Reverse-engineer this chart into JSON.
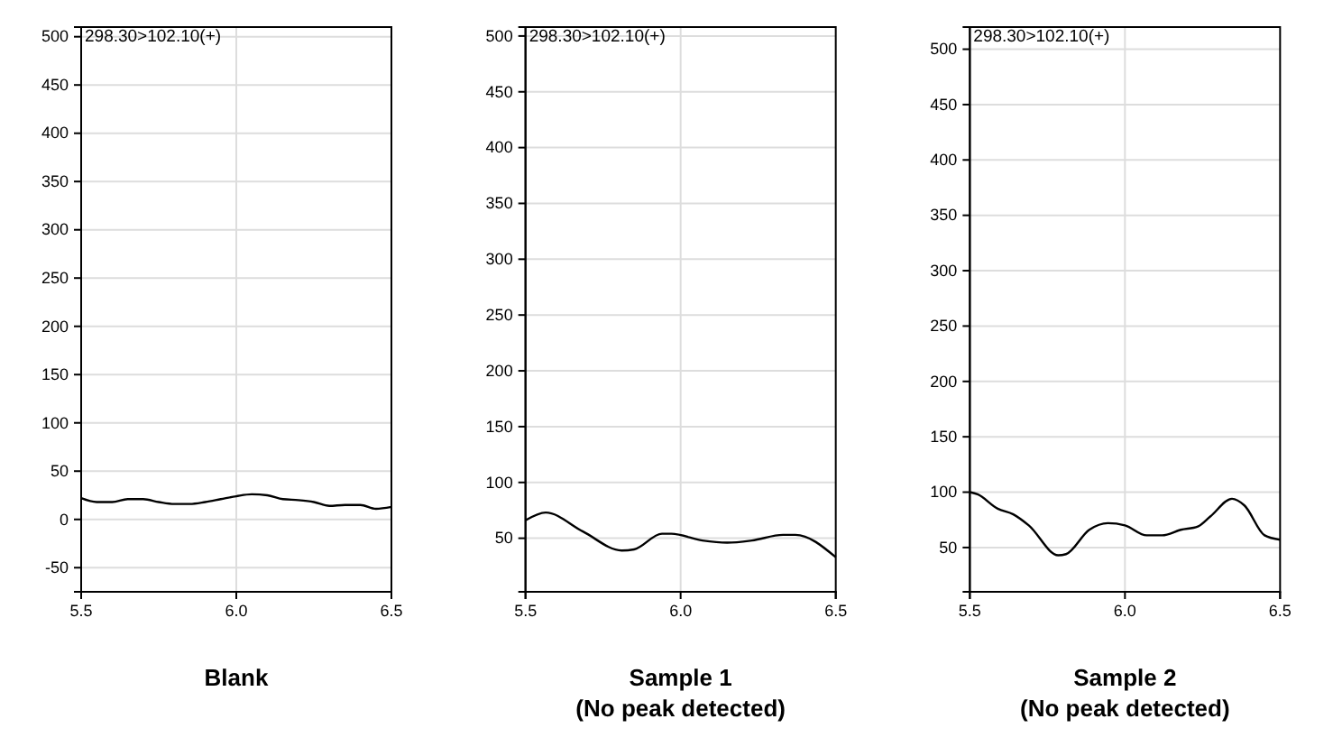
{
  "chart_data": [
    {
      "type": "line",
      "title": "Blank",
      "annotations": [
        "298.30>102.10(+)"
      ],
      "grid": true,
      "line_style": "solid",
      "marker": "none",
      "xlim": [
        5.5,
        6.5
      ],
      "xticks": [
        {
          "value": 5.5,
          "label": "5.5"
        },
        {
          "value": 6.0,
          "label": "6.0"
        },
        {
          "value": 6.5,
          "label": "6.5"
        }
      ],
      "ylim": [
        -75,
        510
      ],
      "yticks": [
        -50,
        0,
        50,
        100,
        150,
        200,
        250,
        300,
        350,
        400,
        450,
        500
      ],
      "series": [
        {
          "color": "#000000",
          "x": [
            5.5,
            5.55,
            5.6,
            5.65,
            5.7,
            5.75,
            5.8,
            5.85,
            5.9,
            5.95,
            6.0,
            6.05,
            6.1,
            6.15,
            6.2,
            6.25,
            6.3,
            6.35,
            6.4,
            6.45,
            6.5
          ],
          "values": [
            22,
            18,
            18,
            21,
            21,
            18,
            16,
            16,
            18,
            21,
            24,
            26,
            25,
            21,
            20,
            18,
            14,
            15,
            15,
            11,
            13
          ]
        }
      ]
    },
    {
      "type": "line",
      "title": "Sample 1\n(No peak detected)",
      "annotations": [
        "298.30>102.10(+)"
      ],
      "grid": true,
      "line_style": "solid",
      "marker": "none",
      "xlim": [
        5.5,
        6.5
      ],
      "xticks": [
        {
          "value": 5.5,
          "label": "5.5"
        },
        {
          "value": 6.0,
          "label": "6.0"
        },
        {
          "value": 6.5,
          "label": "6.5"
        }
      ],
      "ylim": [
        2,
        508
      ],
      "yticks": [
        50,
        100,
        150,
        200,
        250,
        300,
        350,
        400,
        450,
        500
      ],
      "series": [
        {
          "color": "#000000",
          "x": [
            5.5,
            5.565,
            5.685,
            5.81,
            5.85,
            5.94,
            5.97,
            6.07,
            6.15,
            6.23,
            6.33,
            6.37,
            6.5
          ],
          "values": [
            66,
            73,
            56,
            39,
            40,
            54,
            54,
            48,
            46,
            48,
            53,
            53,
            33
          ]
        }
      ]
    },
    {
      "type": "line",
      "title": "Sample 2\n(No peak detected)",
      "annotations": [
        "298.30>102.10(+)"
      ],
      "grid": true,
      "line_style": "solid",
      "marker": "none",
      "xlim": [
        5.5,
        6.5
      ],
      "xticks": [
        {
          "value": 5.5,
          "label": "5.5"
        },
        {
          "value": 6.0,
          "label": "6.0"
        },
        {
          "value": 6.5,
          "label": "6.5"
        }
      ],
      "ylim": [
        10,
        520
      ],
      "yticks": [
        50,
        100,
        150,
        200,
        250,
        300,
        350,
        400,
        450,
        500
      ],
      "series": [
        {
          "color": "#000000",
          "x": [
            5.5,
            5.525,
            5.59,
            5.64,
            5.69,
            5.785,
            5.81,
            5.885,
            5.945,
            6.0,
            6.07,
            6.12,
            6.18,
            6.235,
            6.275,
            6.345,
            6.385,
            6.45,
            6.5
          ],
          "values": [
            100,
            98,
            85,
            80,
            70,
            43,
            44,
            66,
            72,
            70,
            61,
            61,
            66,
            69,
            78,
            94,
            88,
            61,
            57
          ]
        }
      ]
    }
  ]
}
